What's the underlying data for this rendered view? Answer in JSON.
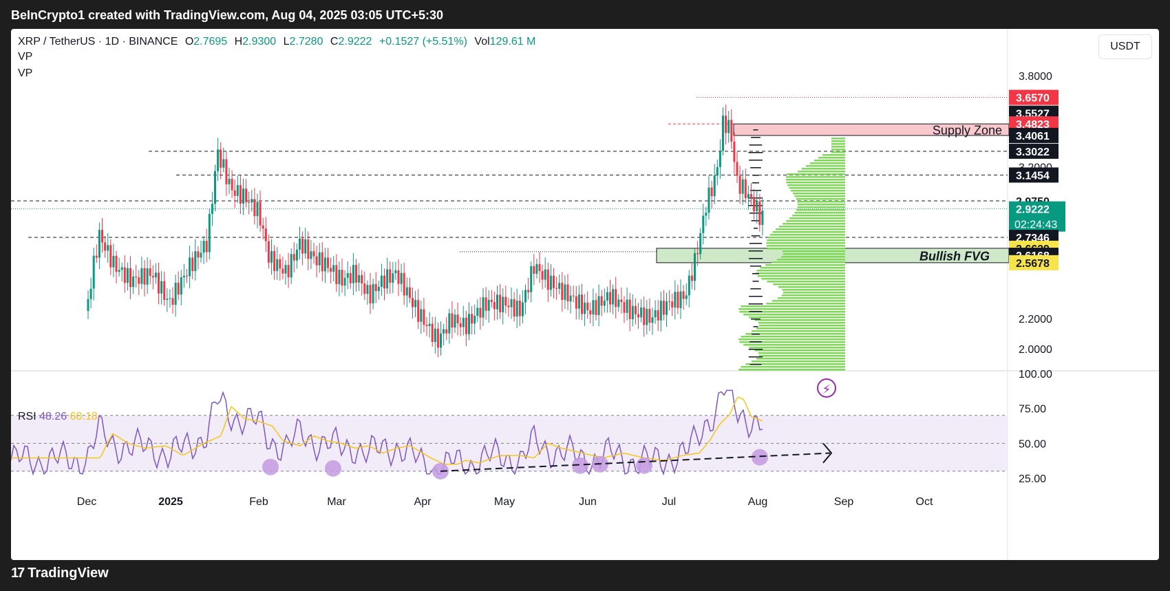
{
  "header": {
    "title": "BeInCrypto1 created with TradingView.com, Aug 04, 2025 03:05 UTC+5:30"
  },
  "footer": {
    "brand": "TradingView"
  },
  "legend": {
    "symbol": "XRP / TetherUS · 1D · BINANCE",
    "open_label": "O",
    "open": "2.7695",
    "high_label": "H",
    "high": "2.9300",
    "low_label": "L",
    "low": "2.7280",
    "close_label": "C",
    "close": "2.9222",
    "change": "+0.1527 (+5.51%)",
    "vol_label": "Vol",
    "vol": "129.61 M",
    "indicators": [
      "VP",
      "VP"
    ]
  },
  "currency_button": "USDT",
  "annotations": {
    "supply_zone": "Supply Zone",
    "bullish_fvg": "Bullish FVG"
  },
  "price_axis": {
    "ticks": [
      "3.8000",
      "3.2000",
      "2.2000",
      "2.0000"
    ],
    "labels": [
      {
        "text": "3.6570",
        "style": "red"
      },
      {
        "text": "3.5527",
        "style": "black"
      },
      {
        "text": "3.4823",
        "style": "red"
      },
      {
        "text": "3.4061",
        "style": "black"
      },
      {
        "text": "3.3022",
        "style": "black"
      },
      {
        "text": "3.1454",
        "style": "black"
      },
      {
        "text": "2.9750",
        "style": "white"
      },
      {
        "text": "2.9222",
        "style": "green"
      },
      {
        "text": "2.7346",
        "style": "black"
      },
      {
        "text": "2.6629",
        "style": "yellow"
      },
      {
        "text": "2.6168",
        "style": "black"
      },
      {
        "text": "2.5678",
        "style": "yellow"
      }
    ],
    "countdown": "02:24:43"
  },
  "rsi": {
    "label": "RSI",
    "value": "48.26",
    "ma_value": "60.18",
    "ticks": [
      "100.00",
      "75.00",
      "50.00",
      "25.00"
    ]
  },
  "time_axis": [
    "Dec",
    "2025",
    "Feb",
    "Mar",
    "Apr",
    "May",
    "Jun",
    "Jul",
    "Aug",
    "Sep",
    "Oct"
  ],
  "colors": {
    "up": "#089981",
    "down": "#f23645",
    "rsi": "#7e57c2",
    "rsi_ma": "#f5c518",
    "vp": "#7ed957",
    "supply": "#f8c8cc",
    "fvg": "#cfe9c8"
  }
}
